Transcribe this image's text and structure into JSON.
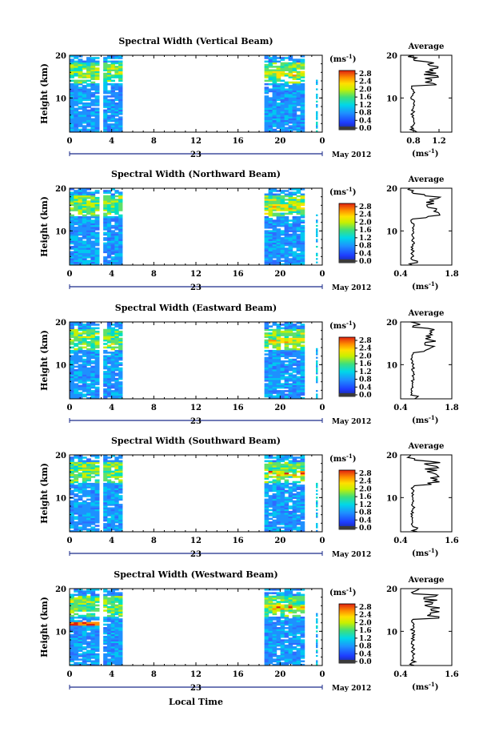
{
  "figure": {
    "xlabel": "Local Time",
    "date_label": "May 2012",
    "day_label": "23",
    "colorbar_unit": "(ms",
    "colorbar_unit_sup": "-1",
    "colorbar_unit_close": ")",
    "avg_title": "Average",
    "avg_unit": "(ms",
    "avg_unit_sup": "-1",
    "avg_unit_close": ")"
  },
  "chart_data": [
    {
      "type": "heatmap",
      "title": "Spectral Width (Vertical Beam)",
      "ylabel": "Height (km)",
      "xlim": [
        0,
        24
      ],
      "ylim": [
        2,
        20
      ],
      "xticks": [
        "0",
        "4",
        "8",
        "12",
        "16",
        "20",
        "0"
      ],
      "yticks": [
        "10",
        "20"
      ],
      "colorbar_ticks": [
        "0.0",
        "0.4",
        "0.8",
        "1.2",
        "1.6",
        "2.0",
        "2.4",
        "2.8"
      ],
      "data_intervals_hours": [
        [
          0,
          2.8
        ],
        [
          3.2,
          5
        ],
        [
          18.5,
          22.3
        ]
      ],
      "average": {
        "title": "Average",
        "xticks": [
          "0.8",
          "1.2"
        ],
        "xlim": [
          0.6,
          1.4
        ],
        "yticks": [
          "10",
          "20"
        ]
      }
    },
    {
      "type": "heatmap",
      "title": "Spectral Width (Northward Beam)",
      "ylabel": "Height (km)",
      "xlim": [
        0,
        24
      ],
      "ylim": [
        2,
        20
      ],
      "xticks": [
        "0",
        "4",
        "8",
        "12",
        "16",
        "20",
        "0"
      ],
      "yticks": [
        "10",
        "20"
      ],
      "colorbar_ticks": [
        "0.0",
        "0.4",
        "0.8",
        "1.2",
        "1.6",
        "2.0",
        "2.4",
        "2.8"
      ],
      "data_intervals_hours": [
        [
          0,
          2.8
        ],
        [
          3.2,
          5
        ],
        [
          18.5,
          22.3
        ]
      ],
      "average": {
        "title": "Average",
        "xticks": [
          "0.4",
          "1.8"
        ],
        "xlim": [
          0.4,
          1.8
        ],
        "yticks": [
          "10",
          "20"
        ]
      }
    },
    {
      "type": "heatmap",
      "title": "Spectral Width (Eastward Beam)",
      "ylabel": "Height (km)",
      "xlim": [
        0,
        24
      ],
      "ylim": [
        2,
        20
      ],
      "xticks": [
        "0",
        "4",
        "8",
        "12",
        "16",
        "20",
        "0"
      ],
      "yticks": [
        "10",
        "20"
      ],
      "colorbar_ticks": [
        "0.0",
        "0.4",
        "0.8",
        "1.2",
        "1.6",
        "2.0",
        "2.4",
        "2.8"
      ],
      "data_intervals_hours": [
        [
          0,
          2.8
        ],
        [
          3.2,
          5
        ],
        [
          18.5,
          22.3
        ]
      ],
      "average": {
        "title": "Average",
        "xticks": [
          "0.4",
          "1.8"
        ],
        "xlim": [
          0.4,
          1.8
        ],
        "yticks": [
          "10",
          "20"
        ]
      }
    },
    {
      "type": "heatmap",
      "title": "Spectral Width (Southward Beam)",
      "ylabel": "Height (km)",
      "xlim": [
        0,
        24
      ],
      "ylim": [
        2,
        20
      ],
      "xticks": [
        "0",
        "4",
        "8",
        "12",
        "16",
        "20",
        "0"
      ],
      "yticks": [
        "10",
        "20"
      ],
      "colorbar_ticks": [
        "0.0",
        "0.4",
        "0.8",
        "1.2",
        "1.6",
        "2.0",
        "2.4",
        "2.8"
      ],
      "data_intervals_hours": [
        [
          0,
          2.8
        ],
        [
          3.2,
          5
        ],
        [
          18.5,
          22.3
        ]
      ],
      "average": {
        "title": "Average",
        "xticks": [
          "0.4",
          "1.6"
        ],
        "xlim": [
          0.4,
          1.6
        ],
        "yticks": [
          "10",
          "20"
        ]
      }
    },
    {
      "type": "heatmap",
      "title": "Spectral Width (Westward Beam)",
      "ylabel": "Height (km)",
      "xlim": [
        0,
        24
      ],
      "ylim": [
        2,
        20
      ],
      "xticks": [
        "0",
        "4",
        "8",
        "12",
        "16",
        "20",
        "0"
      ],
      "yticks": [
        "10",
        "20"
      ],
      "colorbar_ticks": [
        "0.0",
        "0.4",
        "0.8",
        "1.2",
        "1.6",
        "2.0",
        "2.4",
        "2.8"
      ],
      "data_intervals_hours": [
        [
          0,
          2.8
        ],
        [
          3.2,
          5
        ],
        [
          18.5,
          22.3
        ]
      ],
      "average": {
        "title": "Average",
        "xticks": [
          "0.4",
          "1.6"
        ],
        "xlim": [
          0.4,
          1.6
        ],
        "yticks": [
          "10",
          "20"
        ]
      }
    }
  ]
}
